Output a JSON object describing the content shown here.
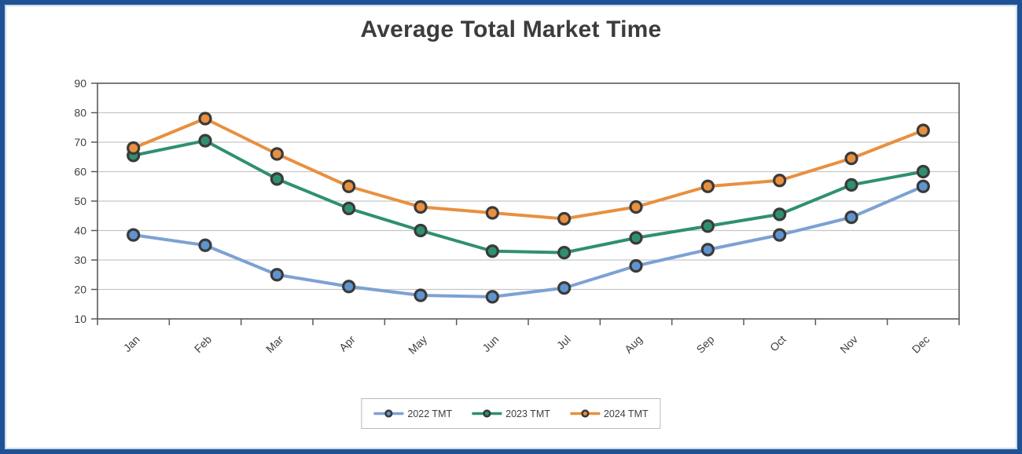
{
  "window": {
    "border_color": "#1F5295",
    "inner_border_color": "#CBD9EA",
    "background": "#FFFFFF"
  },
  "chart_data": {
    "type": "line",
    "title": "Average Total Market Time",
    "categories": [
      "Jan",
      "Feb",
      "Mar",
      "Apr",
      "May",
      "Jun",
      "Jul",
      "Aug",
      "Sep",
      "Oct",
      "Nov",
      "Dec"
    ],
    "series": [
      {
        "name": "2022 TMT",
        "color": "#7DA1D3",
        "marker_fill": "#6094CE",
        "values": [
          38.5,
          35,
          25,
          21,
          18,
          17.5,
          20.5,
          28,
          33.5,
          38.5,
          44.5,
          55
        ]
      },
      {
        "name": "2023 TMT",
        "color": "#2F9070",
        "marker_fill": "#2F9070",
        "values": [
          65.5,
          70.5,
          57.5,
          47.5,
          40,
          33,
          32.5,
          37.5,
          41.5,
          45.5,
          55.5,
          60
        ]
      },
      {
        "name": "2024 TMT",
        "color": "#E8903F",
        "marker_fill": "#E8903F",
        "values": [
          68,
          78,
          66,
          55,
          48,
          46,
          44,
          48,
          55,
          57,
          64.5,
          74
        ]
      }
    ],
    "xlabel": "",
    "ylabel": "",
    "ylim": [
      10,
      90
    ],
    "yticks": [
      10,
      20,
      30,
      40,
      50,
      60,
      70,
      80,
      90
    ],
    "x_tick_rotation": -45,
    "grid": true,
    "legend_position": "bottom",
    "grid_color": "#C6C6C6",
    "axis_line_color": "#595959",
    "tick_label_color": "#3F3F3F",
    "title_color": "#3C3C3C",
    "marker_outline_color": "#3A3A3A"
  }
}
